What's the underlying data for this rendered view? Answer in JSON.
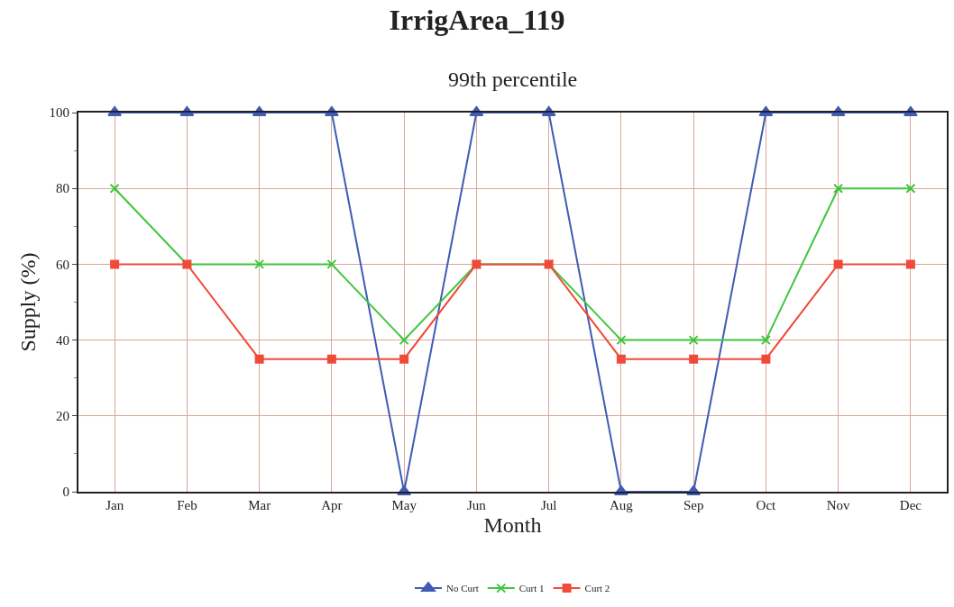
{
  "chart_data": {
    "type": "line",
    "title": "IrrigArea_119",
    "subtitle": "99th percentile",
    "xlabel": "Month",
    "ylabel": "Supply (%)",
    "categories": [
      "Jan",
      "Feb",
      "Mar",
      "Apr",
      "May",
      "Jun",
      "Jul",
      "Aug",
      "Sep",
      "Oct",
      "Nov",
      "Dec"
    ],
    "series": [
      {
        "name": "No Curt",
        "color": "#3f5bb5",
        "marker": "triangle",
        "values": [
          100,
          100,
          100,
          100,
          0,
          100,
          100,
          0,
          0,
          100,
          100,
          100
        ]
      },
      {
        "name": "Curt 1",
        "color": "#3cc63c",
        "marker": "cross",
        "values": [
          80,
          60,
          60,
          60,
          40,
          60,
          60,
          40,
          40,
          40,
          80,
          80
        ]
      },
      {
        "name": "Curt 2",
        "color": "#f04a3a",
        "marker": "square",
        "values": [
          60,
          60,
          35,
          35,
          35,
          60,
          60,
          35,
          35,
          35,
          60,
          60
        ]
      }
    ],
    "ylim": [
      0,
      100
    ],
    "yticks": [
      0,
      20,
      40,
      60,
      80,
      100
    ],
    "grid": true,
    "legend": "bottom",
    "line_style": "solid"
  }
}
